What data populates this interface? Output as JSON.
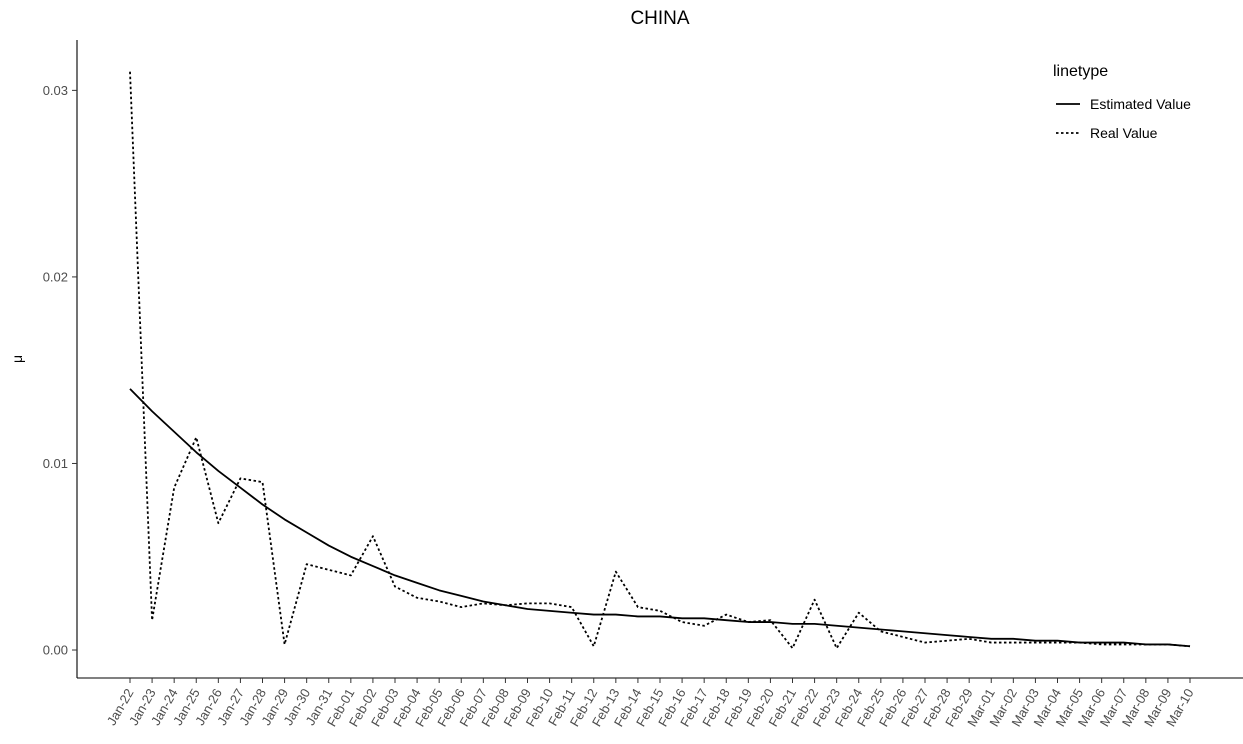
{
  "chart_data": {
    "type": "line",
    "title": "CHINA",
    "xlabel": "",
    "ylabel": "μ",
    "ylim": [
      -0.0015,
      0.0327
    ],
    "yticks": [
      0.0,
      0.01,
      0.02,
      0.03
    ],
    "ytick_labels": [
      "0.00",
      "0.01",
      "0.02",
      "0.03"
    ],
    "grid": false,
    "legend": {
      "title": "linetype",
      "placement": "top-right",
      "entries": [
        "Estimated Value",
        "Real Value"
      ]
    },
    "categories": [
      "Jan-22",
      "Jan-23",
      "Jan-24",
      "Jan-25",
      "Jan-26",
      "Jan-27",
      "Jan-28",
      "Jan-29",
      "Jan-30",
      "Jan-31",
      "Feb-01",
      "Feb-02",
      "Feb-03",
      "Feb-04",
      "Feb-05",
      "Feb-06",
      "Feb-07",
      "Feb-08",
      "Feb-09",
      "Feb-10",
      "Feb-11",
      "Feb-12",
      "Feb-13",
      "Feb-14",
      "Feb-15",
      "Feb-16",
      "Feb-17",
      "Feb-18",
      "Feb-19",
      "Feb-20",
      "Feb-21",
      "Feb-22",
      "Feb-23",
      "Feb-24",
      "Feb-25",
      "Feb-26",
      "Feb-27",
      "Feb-28",
      "Feb-29",
      "Mar-01",
      "Mar-02",
      "Mar-03",
      "Mar-04",
      "Mar-05",
      "Mar-06",
      "Mar-07",
      "Mar-08",
      "Mar-09",
      "Mar-10"
    ],
    "series": [
      {
        "name": "Estimated Value",
        "linetype": "solid",
        "values": [
          0.014,
          0.0128,
          0.0117,
          0.0106,
          0.0096,
          0.0087,
          0.0078,
          0.007,
          0.0063,
          0.0056,
          0.005,
          0.0045,
          0.004,
          0.0036,
          0.0032,
          0.0029,
          0.0026,
          0.0024,
          0.0022,
          0.0021,
          0.002,
          0.0019,
          0.0019,
          0.0018,
          0.0018,
          0.0017,
          0.0017,
          0.0016,
          0.0015,
          0.0015,
          0.0014,
          0.0014,
          0.0013,
          0.0012,
          0.0011,
          0.001,
          0.0009,
          0.0008,
          0.0007,
          0.0006,
          0.0006,
          0.0005,
          0.0005,
          0.0004,
          0.0004,
          0.0004,
          0.0003,
          0.0003,
          0.0002
        ]
      },
      {
        "name": "Real Value",
        "linetype": "dotted",
        "values": [
          0.031,
          0.0016,
          0.0087,
          0.0114,
          0.0068,
          0.0092,
          0.009,
          0.0003,
          0.0046,
          0.0043,
          0.004,
          0.0061,
          0.0034,
          0.0028,
          0.0026,
          0.0023,
          0.0025,
          0.0024,
          0.0025,
          0.0025,
          0.0023,
          0.0002,
          0.0042,
          0.0023,
          0.0021,
          0.0015,
          0.0013,
          0.0019,
          0.0015,
          0.0016,
          0.0001,
          0.0027,
          0.0001,
          0.002,
          0.001,
          0.0007,
          0.0004,
          0.0005,
          0.0006,
          0.0004,
          0.0004,
          0.0004,
          0.0004,
          0.0004,
          0.0003,
          0.0003,
          0.0003,
          0.0003,
          0.0002
        ]
      }
    ]
  }
}
